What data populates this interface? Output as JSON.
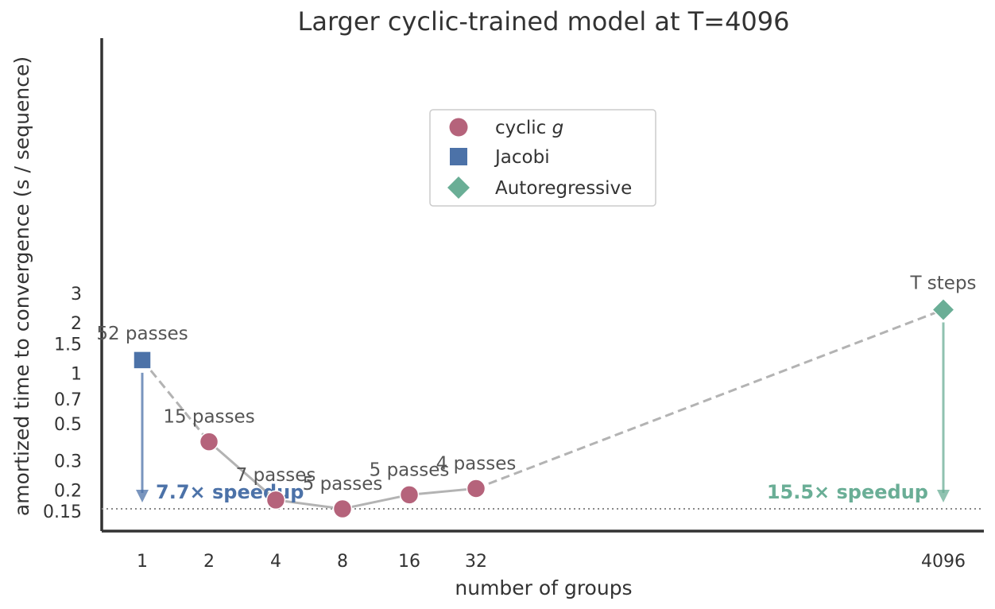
{
  "chart_data": {
    "type": "scatter",
    "title": "Larger cyclic-trained model at T=4096",
    "xlabel": "number of groups",
    "ylabel": "amortized time to convergence (s / sequence)",
    "x_ticks": [
      "1",
      "2",
      "4",
      "8",
      "16",
      "32",
      "4096"
    ],
    "y_ticks": [
      "0.15",
      "0.2",
      "0.3",
      "0.5",
      "0.7",
      "1",
      "1.5",
      "2",
      "3"
    ],
    "y_scale": "log",
    "ylim": [
      0.13,
      3
    ],
    "grid": false,
    "legend_position": "upper-center",
    "colors": {
      "cyclic": "#b5637b",
      "jacobi": "#4c72a8",
      "autoregressive": "#6aae96",
      "line": "#b3b3b3",
      "baseline": "#888888",
      "axis": "#333333"
    },
    "legend": [
      {
        "key": "cyclic",
        "label": "cyclic",
        "label_italic": "g",
        "marker": "circle"
      },
      {
        "key": "jacobi",
        "label": "Jacobi",
        "marker": "square"
      },
      {
        "key": "autoregressive",
        "label": "Autoregressive",
        "marker": "diamond"
      }
    ],
    "series": [
      {
        "key": "jacobi",
        "marker": "square",
        "points": [
          {
            "x": "1",
            "y": 1.2,
            "label": "52 passes"
          }
        ]
      },
      {
        "key": "cyclic",
        "marker": "circle",
        "points": [
          {
            "x": "2",
            "y": 0.39,
            "label": "15 passes"
          },
          {
            "x": "4",
            "y": 0.175,
            "label": "7 passes"
          },
          {
            "x": "8",
            "y": 0.155,
            "label": "5 passes"
          },
          {
            "x": "16",
            "y": 0.188,
            "label": "5 passes"
          },
          {
            "x": "32",
            "y": 0.205,
            "label": "4 passes"
          }
        ]
      },
      {
        "key": "autoregressive",
        "marker": "diamond",
        "points": [
          {
            "x": "4096",
            "y": 2.4,
            "label": "T steps"
          }
        ]
      }
    ],
    "baseline_y": 0.155,
    "speedups": [
      {
        "key": "jacobi",
        "text": "7.7× speedup",
        "from_x": "1"
      },
      {
        "key": "autoregressive",
        "text": "15.5× speedup",
        "from_x": "4096"
      }
    ]
  }
}
